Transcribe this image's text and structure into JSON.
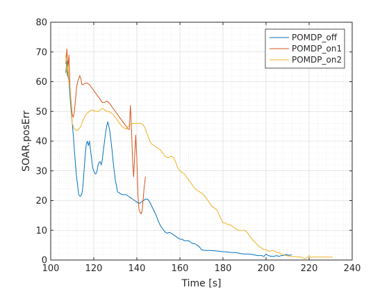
{
  "chart_data": {
    "type": "line",
    "xlabel": "Time [s]",
    "ylabel": "SOAR.posErr",
    "xlim": [
      100,
      240
    ],
    "ylim": [
      0,
      80
    ],
    "xticks": [
      100,
      120,
      140,
      160,
      180,
      200,
      220,
      240
    ],
    "yticks": [
      0,
      10,
      20,
      30,
      40,
      50,
      60,
      70,
      80
    ],
    "grid": true,
    "minor_grid": true,
    "legend_position": "top-right",
    "series": [
      {
        "name": "POMDP_off",
        "color": "#0072BD",
        "points": [
          [
            107,
            63
          ],
          [
            107.5,
            67
          ],
          [
            108,
            62
          ],
          [
            108.5,
            60
          ],
          [
            109,
            55
          ],
          [
            109.5,
            50
          ],
          [
            110,
            46
          ],
          [
            110.5,
            42
          ],
          [
            111,
            37
          ],
          [
            111.5,
            32
          ],
          [
            112,
            28
          ],
          [
            112.5,
            25
          ],
          [
            113,
            22
          ],
          [
            113.5,
            21.5
          ],
          [
            114,
            21.5
          ],
          [
            114.5,
            22.5
          ],
          [
            115,
            25
          ],
          [
            115.5,
            30
          ],
          [
            116,
            35
          ],
          [
            116.5,
            39
          ],
          [
            117,
            40
          ],
          [
            117.5,
            38.5
          ],
          [
            118,
            40
          ],
          [
            118.5,
            37
          ],
          [
            119,
            34
          ],
          [
            119.5,
            31
          ],
          [
            120,
            30
          ],
          [
            120.5,
            29
          ],
          [
            121,
            29
          ],
          [
            121.5,
            30
          ],
          [
            122,
            32
          ],
          [
            122.5,
            33
          ],
          [
            123,
            33
          ],
          [
            123.5,
            32
          ],
          [
            124,
            34
          ],
          [
            124.5,
            37
          ],
          [
            125,
            40
          ],
          [
            125.5,
            43
          ],
          [
            126,
            45
          ],
          [
            126.5,
            46.5
          ],
          [
            127,
            45
          ],
          [
            127.5,
            43
          ],
          [
            128,
            40
          ],
          [
            128.5,
            37
          ],
          [
            129,
            33
          ],
          [
            129.5,
            30
          ],
          [
            130,
            27
          ],
          [
            130.5,
            25
          ],
          [
            131,
            23
          ],
          [
            132,
            22.5
          ],
          [
            133,
            22
          ],
          [
            134,
            22
          ],
          [
            135,
            22
          ],
          [
            136,
            21.5
          ],
          [
            137,
            21
          ],
          [
            138,
            20.5
          ],
          [
            139,
            20
          ],
          [
            140,
            19.5
          ],
          [
            141,
            19
          ],
          [
            142,
            19.5
          ],
          [
            143,
            20
          ],
          [
            144,
            20.5
          ],
          [
            145,
            20.5
          ],
          [
            146,
            19.5
          ],
          [
            147,
            18
          ],
          [
            148,
            16.5
          ],
          [
            149,
            15
          ],
          [
            150,
            13
          ],
          [
            151,
            11.5
          ],
          [
            152,
            10.5
          ],
          [
            153,
            9.5
          ],
          [
            154,
            9
          ],
          [
            155,
            9.3
          ],
          [
            156,
            9
          ],
          [
            157,
            8.5
          ],
          [
            158,
            8
          ],
          [
            159,
            7.5
          ],
          [
            160,
            7
          ],
          [
            161,
            7
          ],
          [
            162,
            6.5
          ],
          [
            163,
            6.5
          ],
          [
            164,
            6.5
          ],
          [
            165,
            6
          ],
          [
            166,
            5.5
          ],
          [
            167,
            5.5
          ],
          [
            168,
            5
          ],
          [
            169,
            4.5
          ],
          [
            170,
            3.5
          ],
          [
            171,
            3.3
          ],
          [
            172,
            3.2
          ],
          [
            174,
            3.2
          ],
          [
            176,
            3.1
          ],
          [
            178,
            3
          ],
          [
            180,
            2.8
          ],
          [
            182,
            2.7
          ],
          [
            184,
            2.5
          ],
          [
            186,
            2.5
          ],
          [
            188,
            2.2
          ],
          [
            190,
            2
          ],
          [
            192,
            2
          ],
          [
            194,
            1.8
          ],
          [
            196,
            1.5
          ],
          [
            198,
            1.5
          ],
          [
            199,
            1.2
          ],
          [
            200,
            2
          ],
          [
            201,
            1.5
          ],
          [
            202,
            1.3
          ],
          [
            203,
            1.2
          ],
          [
            204,
            1.3
          ],
          [
            205,
            1.5
          ],
          [
            206,
            1.2
          ],
          [
            207,
            1.5
          ],
          [
            208,
            1.5
          ],
          [
            209,
            1.8
          ],
          [
            210,
            1.7
          ],
          [
            211,
            1.6
          ],
          [
            212,
            1.8
          ]
        ]
      },
      {
        "name": "POMDP_on1",
        "color": "#D95319",
        "points": [
          [
            107,
            66
          ],
          [
            107.5,
            71
          ],
          [
            108,
            64
          ],
          [
            108.5,
            69
          ],
          [
            109,
            57
          ],
          [
            109.5,
            53
          ],
          [
            110,
            49
          ],
          [
            110.5,
            48
          ],
          [
            111,
            50
          ],
          [
            111.5,
            54
          ],
          [
            112,
            58
          ],
          [
            112.5,
            60
          ],
          [
            113,
            61
          ],
          [
            113.5,
            62
          ],
          [
            114,
            61
          ],
          [
            114.5,
            59
          ],
          [
            115,
            59
          ],
          [
            116,
            59.5
          ],
          [
            117,
            59.5
          ],
          [
            118,
            59
          ],
          [
            119,
            58
          ],
          [
            120,
            57
          ],
          [
            121,
            56
          ],
          [
            122,
            55
          ],
          [
            123,
            54
          ],
          [
            124,
            53
          ],
          [
            125,
            53
          ],
          [
            126,
            53.5
          ],
          [
            127,
            53
          ],
          [
            128,
            52
          ],
          [
            129,
            51
          ],
          [
            130,
            50
          ],
          [
            131,
            49
          ],
          [
            132,
            48
          ],
          [
            133,
            47
          ],
          [
            134,
            46
          ],
          [
            135,
            45
          ],
          [
            136,
            44
          ],
          [
            136.5,
            44
          ],
          [
            137,
            52
          ],
          [
            137.5,
            44
          ],
          [
            138,
            34
          ],
          [
            138.5,
            28
          ],
          [
            139,
            35
          ],
          [
            139.5,
            42
          ],
          [
            140,
            34
          ],
          [
            140.5,
            22
          ],
          [
            141,
            17
          ],
          [
            141.5,
            16
          ],
          [
            142,
            15.5
          ],
          [
            142.5,
            17
          ],
          [
            143,
            21
          ],
          [
            143.5,
            25
          ],
          [
            144,
            28
          ]
        ]
      },
      {
        "name": "POMDP_on2",
        "color": "#EDB120",
        "points": [
          [
            107,
            69
          ],
          [
            107.5,
            62
          ],
          [
            108,
            66
          ],
          [
            108.5,
            60
          ],
          [
            109,
            58
          ],
          [
            109.5,
            52
          ],
          [
            110,
            46
          ],
          [
            110.5,
            45
          ],
          [
            111,
            44
          ],
          [
            112,
            43.5
          ],
          [
            113,
            44
          ],
          [
            114,
            45
          ],
          [
            115,
            47
          ],
          [
            116,
            48.5
          ],
          [
            117,
            49.5
          ],
          [
            118,
            50
          ],
          [
            119,
            50.5
          ],
          [
            120,
            50.3
          ],
          [
            121,
            50
          ],
          [
            122,
            50
          ],
          [
            123,
            50.5
          ],
          [
            124,
            51
          ],
          [
            125,
            50.5
          ],
          [
            126,
            50
          ],
          [
            127,
            50
          ],
          [
            128,
            49.5
          ],
          [
            129,
            49
          ],
          [
            130,
            48
          ],
          [
            131,
            47
          ],
          [
            132,
            46
          ],
          [
            133,
            45
          ],
          [
            134,
            44.5
          ],
          [
            135,
            44
          ],
          [
            136,
            45
          ],
          [
            137,
            45.5
          ],
          [
            138,
            46
          ],
          [
            139,
            46
          ],
          [
            140,
            46
          ],
          [
            141,
            46
          ],
          [
            142,
            46
          ],
          [
            143,
            45.5
          ],
          [
            144,
            44
          ],
          [
            145,
            42
          ],
          [
            146,
            40
          ],
          [
            147,
            39
          ],
          [
            148,
            38.5
          ],
          [
            149,
            38
          ],
          [
            150,
            37.5
          ],
          [
            151,
            37
          ],
          [
            152,
            36
          ],
          [
            153,
            35
          ],
          [
            154,
            34.5
          ],
          [
            155,
            34.5
          ],
          [
            156,
            35
          ],
          [
            157,
            34.5
          ],
          [
            158,
            33
          ],
          [
            159,
            31
          ],
          [
            160,
            30
          ],
          [
            161,
            29.5
          ],
          [
            162,
            29
          ],
          [
            163,
            28
          ],
          [
            164,
            27
          ],
          [
            165,
            26
          ],
          [
            166,
            25
          ],
          [
            167,
            24
          ],
          [
            168,
            23.5
          ],
          [
            169,
            23
          ],
          [
            170,
            22.5
          ],
          [
            171,
            22
          ],
          [
            172,
            21
          ],
          [
            173,
            20
          ],
          [
            174,
            19
          ],
          [
            175,
            18
          ],
          [
            176,
            17.5
          ],
          [
            177,
            17
          ],
          [
            178,
            15.5
          ],
          [
            179,
            14
          ],
          [
            180,
            12.5
          ],
          [
            181,
            12.5
          ],
          [
            182,
            12
          ],
          [
            183,
            12
          ],
          [
            184,
            11.5
          ],
          [
            185,
            11
          ],
          [
            186,
            10.5
          ],
          [
            187,
            10
          ],
          [
            188,
            10
          ],
          [
            189,
            10
          ],
          [
            190,
            10
          ],
          [
            191,
            9.5
          ],
          [
            192,
            8.5
          ],
          [
            193,
            7.5
          ],
          [
            194,
            6.5
          ],
          [
            195,
            6
          ],
          [
            196,
            5
          ],
          [
            197,
            4.5
          ],
          [
            198,
            4
          ],
          [
            199,
            3.5
          ],
          [
            200,
            3.5
          ],
          [
            201,
            3
          ],
          [
            202,
            3
          ],
          [
            203,
            3.2
          ],
          [
            204,
            3
          ],
          [
            205,
            2.5
          ],
          [
            206,
            2.5
          ],
          [
            207,
            2
          ],
          [
            208,
            1.8
          ],
          [
            209,
            1.5
          ],
          [
            210,
            1.4
          ],
          [
            211,
            1.3
          ],
          [
            212,
            1.2
          ],
          [
            214,
            1.1
          ],
          [
            216,
            1
          ],
          [
            218,
            0.5
          ],
          [
            219,
            0.8
          ],
          [
            220,
            1.5
          ],
          [
            221,
            0.9
          ],
          [
            222,
            1
          ],
          [
            224,
            1
          ],
          [
            226,
            1
          ],
          [
            228,
            1
          ],
          [
            230,
            1
          ],
          [
            231,
            1
          ]
        ]
      }
    ]
  }
}
